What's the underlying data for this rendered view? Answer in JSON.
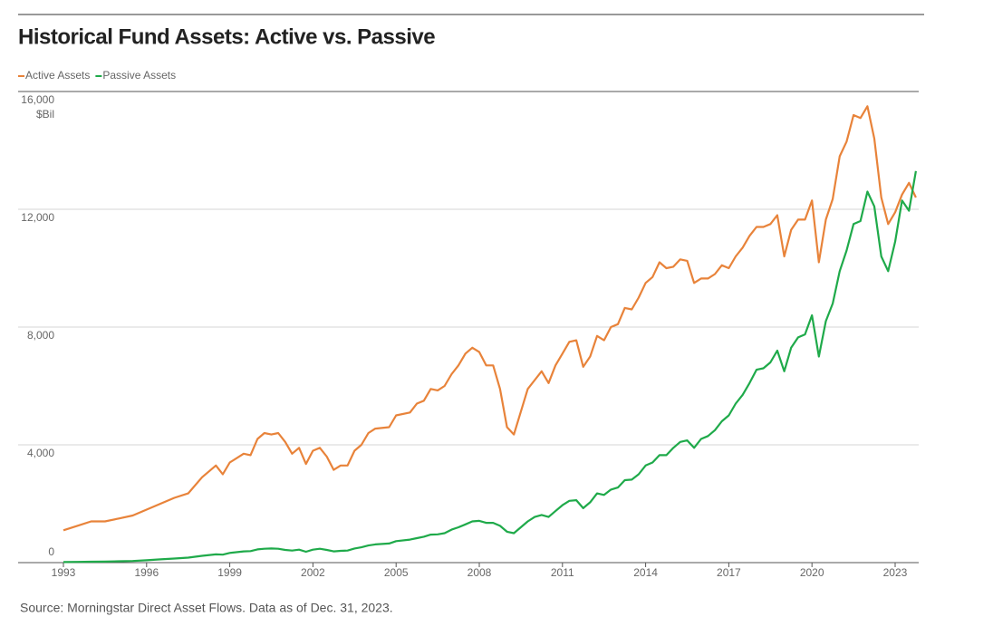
{
  "chart_data": {
    "type": "line",
    "title": "Historical Fund Assets: Active vs. Passive",
    "y_unit": "$Bil",
    "source": "Source: Morningstar Direct Asset Flows. Data as of Dec. 31, 2023.",
    "x": [
      1993,
      1993.5,
      1994,
      1994.5,
      1995,
      1995.5,
      1996,
      1996.5,
      1997,
      1997.5,
      1998,
      1998.5,
      1998.75,
      1999,
      1999.5,
      1999.75,
      2000,
      2000.25,
      2000.5,
      2000.75,
      2001,
      2001.25,
      2001.5,
      2001.75,
      2002,
      2002.25,
      2002.5,
      2002.75,
      2003,
      2003.25,
      2003.5,
      2003.75,
      2004,
      2004.25,
      2004.75,
      2005,
      2005.5,
      2005.75,
      2006,
      2006.25,
      2006.5,
      2006.75,
      2007,
      2007.25,
      2007.5,
      2007.75,
      2008,
      2008.25,
      2008.5,
      2008.75,
      2009,
      2009.25,
      2009.75,
      2010,
      2010.25,
      2010.5,
      2010.75,
      2011,
      2011.25,
      2011.5,
      2011.75,
      2012,
      2012.25,
      2012.5,
      2012.75,
      2013,
      2013.25,
      2013.5,
      2013.75,
      2014,
      2014.25,
      2014.5,
      2014.75,
      2015,
      2015.25,
      2015.5,
      2015.75,
      2016,
      2016.25,
      2016.5,
      2016.75,
      2017,
      2017.25,
      2017.5,
      2017.75,
      2018,
      2018.25,
      2018.5,
      2018.75,
      2019,
      2019.25,
      2019.5,
      2019.75,
      2020,
      2020.25,
      2020.5,
      2020.75,
      2021,
      2021.25,
      2021.5,
      2021.75,
      2022,
      2022.25,
      2022.5,
      2022.75,
      2023,
      2023.25,
      2023.5,
      2023.75
    ],
    "series": [
      {
        "name": "Active Assets",
        "color": "#e8833a",
        "values": [
          1100,
          1250,
          1400,
          1400,
          1500,
          1600,
          1800,
          2000,
          2200,
          2350,
          2900,
          3300,
          3000,
          3400,
          3700,
          3650,
          4200,
          4400,
          4350,
          4400,
          4100,
          3700,
          3900,
          3350,
          3800,
          3900,
          3600,
          3150,
          3300,
          3300,
          3800,
          4000,
          4400,
          4550,
          4600,
          5000,
          5100,
          5400,
          5500,
          5900,
          5850,
          6000,
          6400,
          6700,
          7100,
          7300,
          7150,
          6700,
          6700,
          5900,
          4600,
          4350,
          5900,
          6200,
          6500,
          6100,
          6700,
          7100,
          7500,
          7550,
          6650,
          7000,
          7700,
          7550,
          8000,
          8100,
          8650,
          8600,
          9000,
          9500,
          9700,
          10200,
          10000,
          10050,
          10300,
          10250,
          9500,
          9650,
          9650,
          9800,
          10100,
          10000,
          10400,
          10700,
          11100,
          11400,
          11400,
          11500,
          11800,
          10400,
          11300,
          11650,
          11650,
          12300,
          10200,
          11650,
          12350,
          13800,
          14300,
          15200,
          15100,
          15500,
          14400,
          12400,
          11500,
          11900,
          12500,
          12900,
          12400
        ]
      },
      {
        "name": "Passive Assets",
        "color": "#1faa4a",
        "values": [
          20,
          25,
          30,
          35,
          45,
          55,
          80,
          110,
          140,
          170,
          230,
          280,
          270,
          330,
          380,
          390,
          450,
          470,
          480,
          470,
          430,
          410,
          440,
          370,
          440,
          470,
          430,
          380,
          400,
          410,
          480,
          520,
          580,
          620,
          650,
          730,
          780,
          830,
          880,
          950,
          960,
          1000,
          1120,
          1200,
          1300,
          1400,
          1420,
          1350,
          1350,
          1250,
          1050,
          1000,
          1400,
          1550,
          1620,
          1550,
          1750,
          1950,
          2100,
          2120,
          1850,
          2050,
          2350,
          2300,
          2480,
          2550,
          2800,
          2820,
          3000,
          3300,
          3400,
          3650,
          3650,
          3900,
          4100,
          4150,
          3900,
          4200,
          4300,
          4500,
          4800,
          5000,
          5400,
          5700,
          6100,
          6550,
          6600,
          6800,
          7200,
          6500,
          7300,
          7650,
          7750,
          8400,
          7000,
          8200,
          8800,
          9900,
          10600,
          11500,
          11600,
          12600,
          12100,
          10400,
          9900,
          10900,
          12300,
          11950,
          13300
        ]
      }
    ],
    "xlim": [
      1993,
      2023.85
    ],
    "xticks": [
      1993,
      1996,
      1999,
      2002,
      2005,
      2008,
      2011,
      2014,
      2017,
      2020,
      2023
    ],
    "ylim": [
      0,
      16000
    ],
    "yticks": [
      0,
      {
        "value": 4000,
        "label": "4,000"
      },
      {
        "value": 8000,
        "label": "8,000"
      },
      {
        "value": 12000,
        "label": "12,000"
      },
      {
        "value": 16000,
        "label": "16,000"
      }
    ],
    "grid": true
  }
}
